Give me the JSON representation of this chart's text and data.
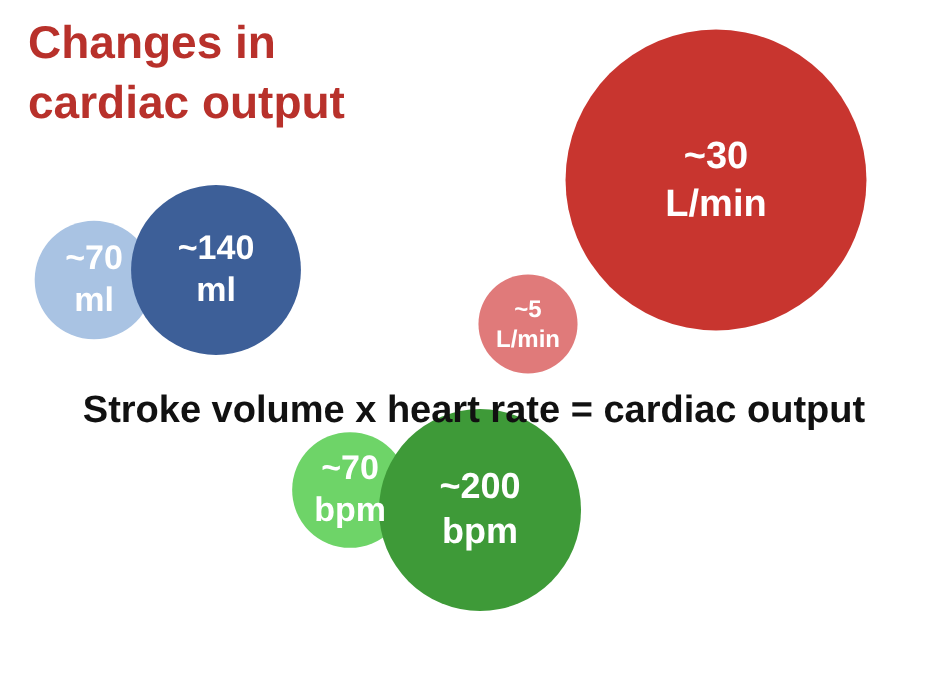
{
  "chart_data": {
    "type": "other",
    "title": "Changes in cardiac output",
    "subtitle": "Stroke volume x heart rate = cardiac output",
    "categories": [
      "ml",
      "ml",
      "L/min",
      "L/min",
      "bpm",
      "bpm"
    ],
    "values": [
      70,
      140,
      5,
      30,
      70,
      200
    ],
    "value_labels": [
      "~70",
      "~140",
      "~5",
      "~30",
      "~70",
      "~200"
    ],
    "colors": [
      "#a9c3e3",
      "#3d5f98",
      "#e07a7a",
      "#c8352f",
      "#6ed468",
      "#3e9a38"
    ]
  }
}
